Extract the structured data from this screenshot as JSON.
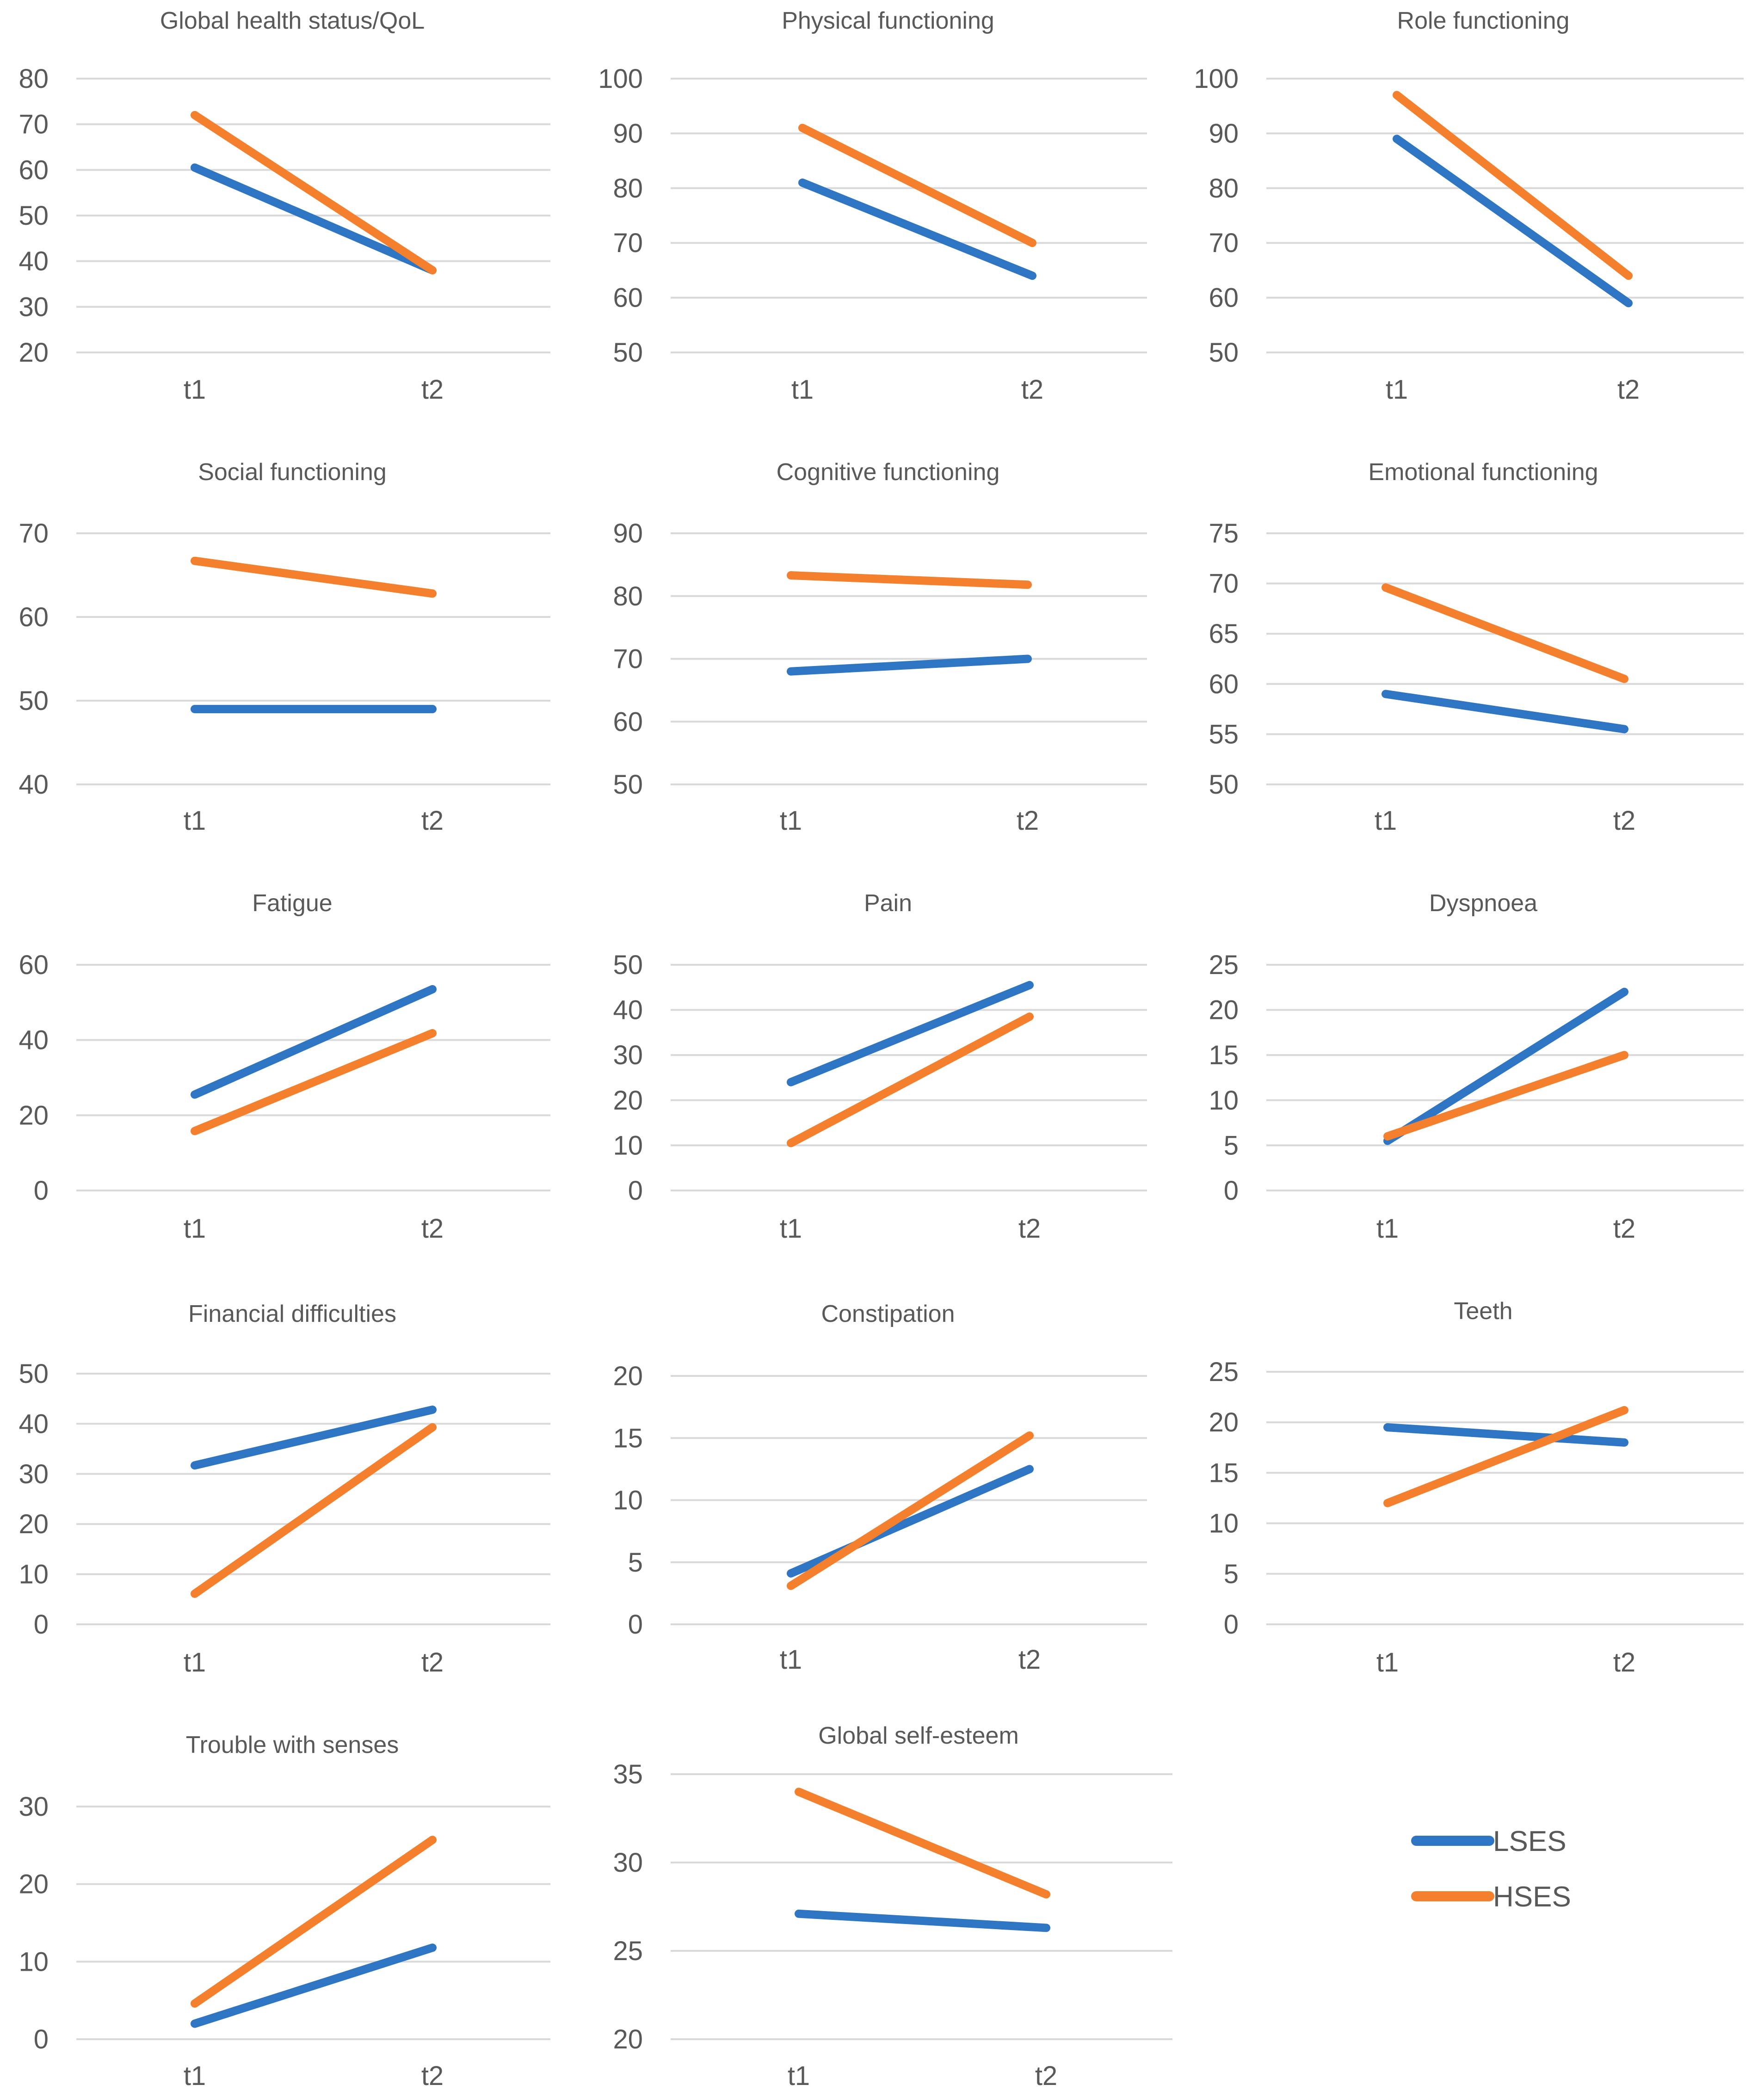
{
  "colors": {
    "lses": "#2E75C3",
    "hses": "#F47F2C",
    "text": "#595959",
    "grid": "#D9D9D9"
  },
  "legend": {
    "items": [
      {
        "name": "LSES",
        "color_key": "lses"
      },
      {
        "name": "HSES",
        "color_key": "hses"
      }
    ]
  },
  "chart_data": [
    {
      "type": "line",
      "title": "Global health status/QoL",
      "categories": [
        "t1",
        "t2"
      ],
      "yticks": [
        20,
        30,
        40,
        50,
        60,
        70,
        80
      ],
      "ylim": [
        20,
        80
      ],
      "series": [
        {
          "name": "LSES",
          "values": [
            60.5,
            38
          ]
        },
        {
          "name": "HSES",
          "values": [
            72,
            38
          ]
        }
      ]
    },
    {
      "type": "line",
      "title": "Physical functioning",
      "categories": [
        "t1",
        "t2"
      ],
      "yticks": [
        50,
        60,
        70,
        80,
        90,
        100
      ],
      "ylim": [
        50,
        100
      ],
      "series": [
        {
          "name": "LSES",
          "values": [
            81,
            64
          ]
        },
        {
          "name": "HSES",
          "values": [
            91,
            70
          ]
        }
      ]
    },
    {
      "type": "line",
      "title": "Role functioning",
      "categories": [
        "t1",
        "t2"
      ],
      "yticks": [
        50,
        60,
        70,
        80,
        90,
        100
      ],
      "ylim": [
        50,
        100
      ],
      "series": [
        {
          "name": "LSES",
          "values": [
            89,
            59
          ]
        },
        {
          "name": "HSES",
          "values": [
            97,
            64
          ]
        }
      ]
    },
    {
      "type": "line",
      "title": "Social functioning",
      "categories": [
        "t1",
        "t2"
      ],
      "yticks": [
        40,
        50,
        60,
        70
      ],
      "ylim": [
        40,
        70
      ],
      "series": [
        {
          "name": "LSES",
          "values": [
            49,
            49
          ]
        },
        {
          "name": "HSES",
          "values": [
            66.7,
            62.8
          ]
        }
      ]
    },
    {
      "type": "line",
      "title": "Cognitive functioning",
      "categories": [
        "t1",
        "t2"
      ],
      "yticks": [
        50,
        60,
        70,
        80,
        90
      ],
      "ylim": [
        50,
        90
      ],
      "series": [
        {
          "name": "LSES",
          "values": [
            68,
            70
          ]
        },
        {
          "name": "HSES",
          "values": [
            83.3,
            81.8
          ]
        }
      ]
    },
    {
      "type": "line",
      "title": "Emotional functioning",
      "categories": [
        "t1",
        "t2"
      ],
      "yticks": [
        50,
        55,
        60,
        65,
        70,
        75
      ],
      "ylim": [
        50,
        75
      ],
      "series": [
        {
          "name": "LSES",
          "values": [
            59,
            55.5
          ]
        },
        {
          "name": "HSES",
          "values": [
            69.6,
            60.5
          ]
        }
      ]
    },
    {
      "type": "line",
      "title": "Fatigue",
      "categories": [
        "t1",
        "t2"
      ],
      "yticks": [
        0,
        20,
        40,
        60
      ],
      "ylim": [
        0,
        60
      ],
      "series": [
        {
          "name": "LSES",
          "values": [
            25.5,
            53.5
          ]
        },
        {
          "name": "HSES",
          "values": [
            15.8,
            41.8
          ]
        }
      ]
    },
    {
      "type": "line",
      "title": "Pain",
      "categories": [
        "t1",
        "t2"
      ],
      "yticks": [
        0,
        10,
        20,
        30,
        40,
        50
      ],
      "ylim": [
        0,
        50
      ],
      "series": [
        {
          "name": "LSES",
          "values": [
            24,
            45.5
          ]
        },
        {
          "name": "HSES",
          "values": [
            10.5,
            38.5
          ]
        }
      ]
    },
    {
      "type": "line",
      "title": "Dyspnoea",
      "categories": [
        "t1",
        "t2"
      ],
      "yticks": [
        0,
        5,
        10,
        15,
        20,
        25
      ],
      "ylim": [
        0,
        25
      ],
      "series": [
        {
          "name": "LSES",
          "values": [
            5.5,
            22
          ]
        },
        {
          "name": "HSES",
          "values": [
            6,
            15
          ]
        }
      ]
    },
    {
      "type": "line",
      "title": "Financial difficulties",
      "categories": [
        "t1",
        "t2"
      ],
      "yticks": [
        0,
        10,
        20,
        30,
        40,
        50
      ],
      "ylim": [
        0,
        50
      ],
      "series": [
        {
          "name": "LSES",
          "values": [
            31.7,
            42.8
          ]
        },
        {
          "name": "HSES",
          "values": [
            6.1,
            39.3
          ]
        }
      ]
    },
    {
      "type": "line",
      "title": "Constipation",
      "categories": [
        "t1",
        "t2"
      ],
      "yticks": [
        0,
        5,
        10,
        15,
        20
      ],
      "ylim": [
        0,
        20
      ],
      "series": [
        {
          "name": "LSES",
          "values": [
            4.1,
            12.5
          ]
        },
        {
          "name": "HSES",
          "values": [
            3.1,
            15.2
          ]
        }
      ]
    },
    {
      "type": "line",
      "title": "Teeth",
      "categories": [
        "t1",
        "t2"
      ],
      "yticks": [
        0,
        5,
        10,
        15,
        20,
        25
      ],
      "ylim": [
        0,
        25
      ],
      "series": [
        {
          "name": "LSES",
          "values": [
            19.5,
            18
          ]
        },
        {
          "name": "HSES",
          "values": [
            12,
            21.2
          ]
        }
      ]
    },
    {
      "type": "line",
      "title": "Trouble with senses",
      "categories": [
        "t1",
        "t2"
      ],
      "yticks": [
        0,
        10,
        20,
        30
      ],
      "ylim": [
        0,
        30
      ],
      "series": [
        {
          "name": "LSES",
          "values": [
            2,
            11.8
          ]
        },
        {
          "name": "HSES",
          "values": [
            4.6,
            25.7
          ]
        }
      ]
    },
    {
      "type": "line",
      "title": "Global self-esteem",
      "categories": [
        "t1",
        "t2"
      ],
      "yticks": [
        20,
        25,
        30,
        35
      ],
      "ylim": [
        20,
        35
      ],
      "series": [
        {
          "name": "LSES",
          "values": [
            27.1,
            26.3
          ]
        },
        {
          "name": "HSES",
          "values": [
            34,
            28.2
          ]
        }
      ]
    }
  ]
}
